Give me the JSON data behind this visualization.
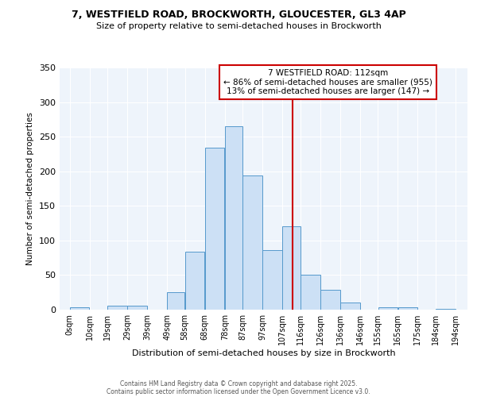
{
  "title1": "7, WESTFIELD ROAD, BROCKWORTH, GLOUCESTER, GL3 4AP",
  "title2": "Size of property relative to semi-detached houses in Brockworth",
  "xlabel": "Distribution of semi-detached houses by size in Brockworth",
  "ylabel": "Number of semi-detached properties",
  "bar_left_edges": [
    0,
    10,
    19,
    29,
    39,
    49,
    58,
    68,
    78,
    87,
    97,
    107,
    116,
    126,
    136,
    146,
    155,
    165,
    175,
    184
  ],
  "bar_widths": [
    10,
    9,
    10,
    10,
    10,
    9,
    10,
    10,
    9,
    10,
    10,
    9,
    10,
    10,
    10,
    9,
    10,
    10,
    9,
    10
  ],
  "bar_heights": [
    4,
    0,
    6,
    6,
    0,
    25,
    84,
    234,
    265,
    194,
    86,
    120,
    50,
    29,
    10,
    0,
    3,
    3,
    0,
    1
  ],
  "bar_color": "#cce0f5",
  "bar_edge_color": "#5599cc",
  "property_line_x": 112,
  "property_line_color": "#cc0000",
  "annotation_title": "7 WESTFIELD ROAD: 112sqm",
  "annotation_line1": "← 86% of semi-detached houses are smaller (955)",
  "annotation_line2": "13% of semi-detached houses are larger (147) →",
  "annotation_color": "#cc0000",
  "ylim": [
    0,
    350
  ],
  "yticks": [
    0,
    50,
    100,
    150,
    200,
    250,
    300,
    350
  ],
  "xtick_labels": [
    "0sqm",
    "10sqm",
    "19sqm",
    "29sqm",
    "39sqm",
    "49sqm",
    "58sqm",
    "68sqm",
    "78sqm",
    "87sqm",
    "97sqm",
    "107sqm",
    "116sqm",
    "126sqm",
    "136sqm",
    "146sqm",
    "155sqm",
    "165sqm",
    "175sqm",
    "184sqm",
    "194sqm"
  ],
  "xtick_positions": [
    0,
    10,
    19,
    29,
    39,
    49,
    58,
    68,
    78,
    87,
    97,
    107,
    116,
    126,
    136,
    146,
    155,
    165,
    175,
    184,
    194
  ],
  "xlim": [
    -5,
    200
  ],
  "bg_color": "#eef4fb",
  "fig_bg_color": "#ffffff",
  "footer_line1": "Contains HM Land Registry data © Crown copyright and database right 2025.",
  "footer_line2": "Contains public sector information licensed under the Open Government Licence v3.0."
}
